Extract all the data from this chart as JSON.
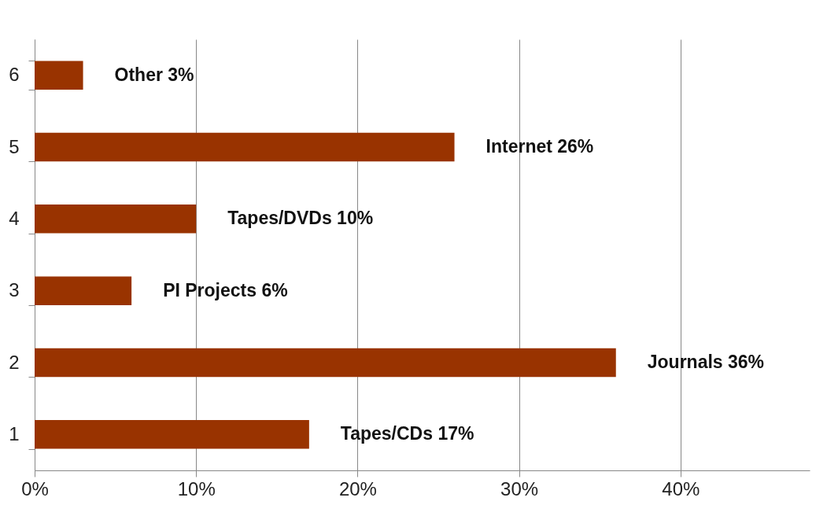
{
  "chart_data": {
    "type": "bar",
    "orientation": "horizontal",
    "categories": [
      "6",
      "5",
      "4",
      "3",
      "2",
      "1"
    ],
    "values": [
      3,
      26,
      10,
      6,
      36,
      17
    ],
    "value_labels": [
      "Other 3%",
      "Internet 26%",
      "Tapes/DVDs 10%",
      "PI Projects 6%",
      "Journals 36%",
      "Tapes/CDs 17%"
    ],
    "color": "#993300",
    "xlim": [
      0,
      48
    ],
    "xticks": [
      {
        "value": 0,
        "label": "0%"
      },
      {
        "value": 10,
        "label": "10%"
      },
      {
        "value": 20,
        "label": "20%"
      },
      {
        "value": 30,
        "label": "30%"
      },
      {
        "value": 40,
        "label": "40%"
      }
    ],
    "grid": "x"
  }
}
